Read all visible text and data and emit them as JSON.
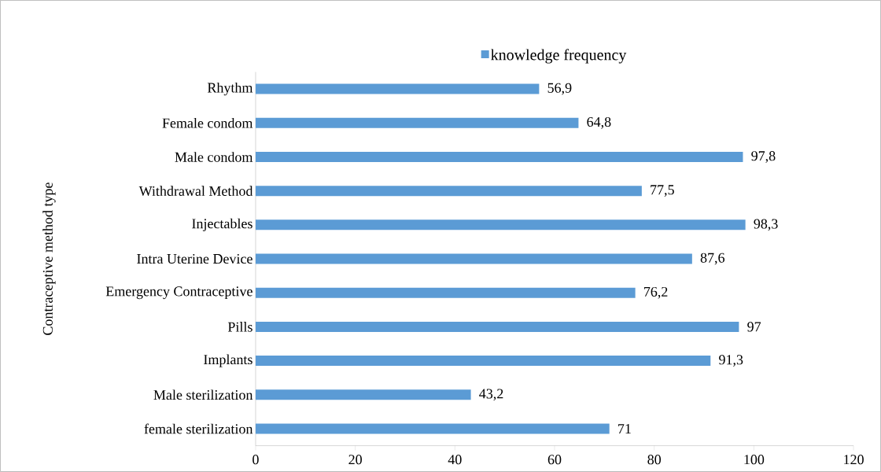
{
  "chart_data": {
    "type": "bar",
    "orientation": "horizontal",
    "ylabel": "Contraceptive method type",
    "categories": [
      "Rhythm",
      "Female condom",
      "Male condom",
      "Withdrawal Method",
      "Injectables",
      "Intra Uterine Device",
      "Emergency Contraceptive",
      "Pills",
      "Implants",
      "Male sterilization",
      "female sterilization"
    ],
    "series": [
      {
        "name": "knowledge frequency",
        "color": "#5b9bd5",
        "values": [
          56.9,
          64.8,
          97.8,
          77.5,
          98.3,
          87.6,
          76.2,
          97,
          91.3,
          43.2,
          71
        ],
        "value_labels": [
          "56,9",
          "64,8",
          "97,8",
          "77,5",
          "98,3",
          "87,6",
          "76,2",
          "97",
          "91,3",
          "43,2",
          "71"
        ]
      }
    ],
    "xlim": [
      0,
      120
    ],
    "xticks": [
      0,
      20,
      40,
      60,
      80,
      100,
      120
    ],
    "grid": false,
    "legend": "top"
  }
}
